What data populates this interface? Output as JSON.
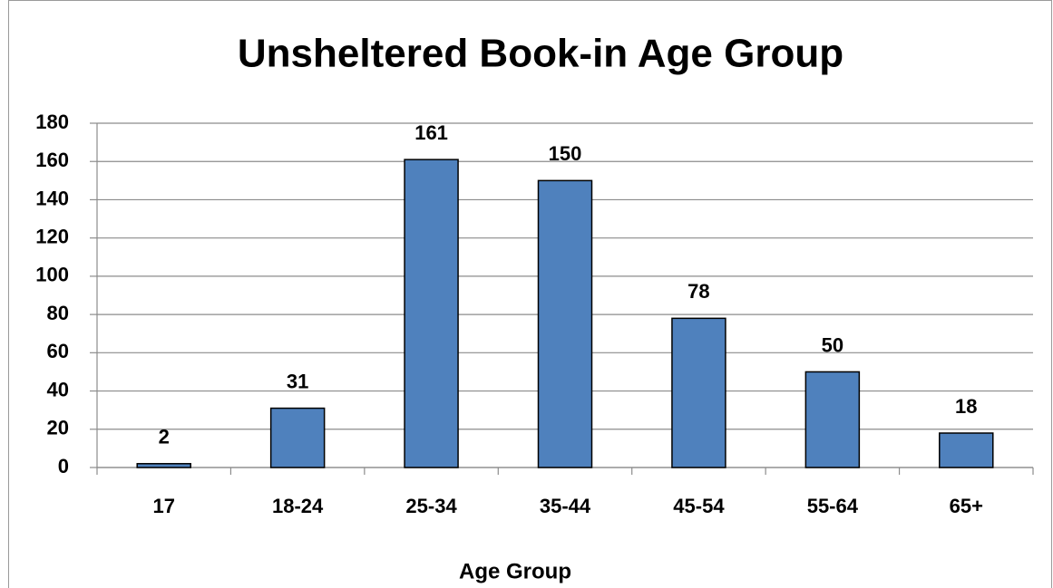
{
  "chart_data": {
    "type": "bar",
    "title": "Unsheltered Book-in Age Group",
    "x_label": "Age Group",
    "categories": [
      "17",
      "18-24",
      "25-34",
      "35-44",
      "45-54",
      "55-64",
      "65+"
    ],
    "values": [
      2,
      31,
      161,
      150,
      78,
      50,
      18
    ],
    "color": "#4f81bd",
    "ylim": [
      0,
      180
    ],
    "yticks": [
      0,
      20,
      40,
      60,
      80,
      100,
      120,
      140,
      160,
      180
    ],
    "grid": true,
    "data_labels": true
  }
}
